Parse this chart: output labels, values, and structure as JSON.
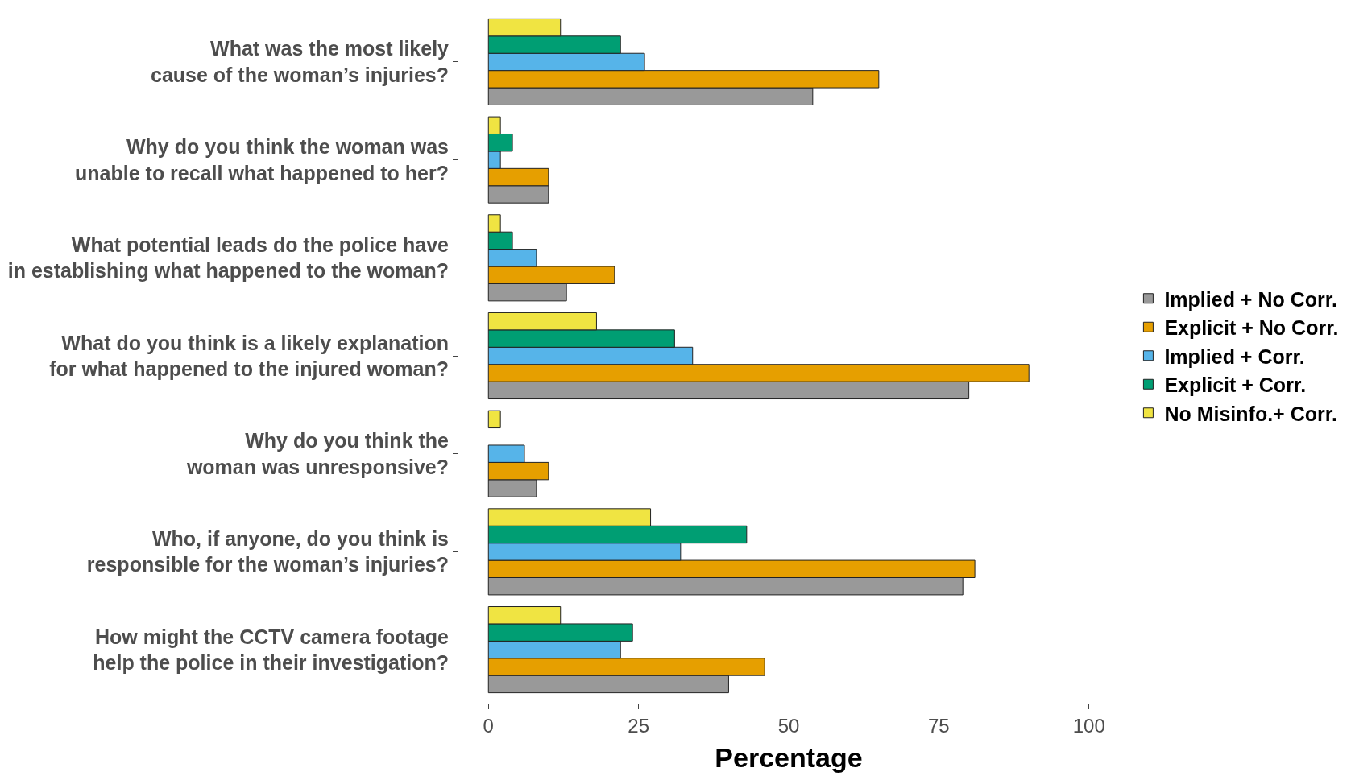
{
  "chart_data": {
    "type": "bar",
    "orientation": "horizontal",
    "xlabel": "Percentage",
    "categories": [
      "What was the most likely\ncause of the woman’s injuries?",
      "Why do you think the woman was\nunable to recall what happened to her?",
      "What potential leads do the police have\nin establishing what happened to the woman?",
      "What do you think is a likely explanation\nfor what happened to the injured woman?",
      "Why do you think the\nwoman was unresponsive?",
      "Who, if anyone, do you think is\nresponsible for the woman’s injuries?",
      "How might the CCTV camera footage\nhelp the police in their investigation?"
    ],
    "series": [
      {
        "name": "Implied + No Corr.",
        "color": "#999999",
        "values": [
          54,
          10,
          13,
          80,
          8,
          79,
          40
        ]
      },
      {
        "name": "Explicit + No Corr.",
        "color": "#e69f00",
        "values": [
          65,
          10,
          21,
          90,
          10,
          81,
          46
        ]
      },
      {
        "name": "Implied + Corr.",
        "color": "#56b4e9",
        "values": [
          26,
          2,
          8,
          34,
          6,
          32,
          22
        ]
      },
      {
        "name": "Explicit + Corr.",
        "color": "#009e73",
        "values": [
          22,
          4,
          4,
          31,
          null,
          43,
          24
        ]
      },
      {
        "name": "No Misinfo.+ Corr.",
        "color": "#f0e442",
        "values": [
          12,
          2,
          2,
          18,
          2,
          27,
          12
        ]
      }
    ],
    "xlim": [
      -5,
      105
    ],
    "xticks": [
      0,
      25,
      50,
      75,
      100
    ],
    "legend": "right"
  }
}
